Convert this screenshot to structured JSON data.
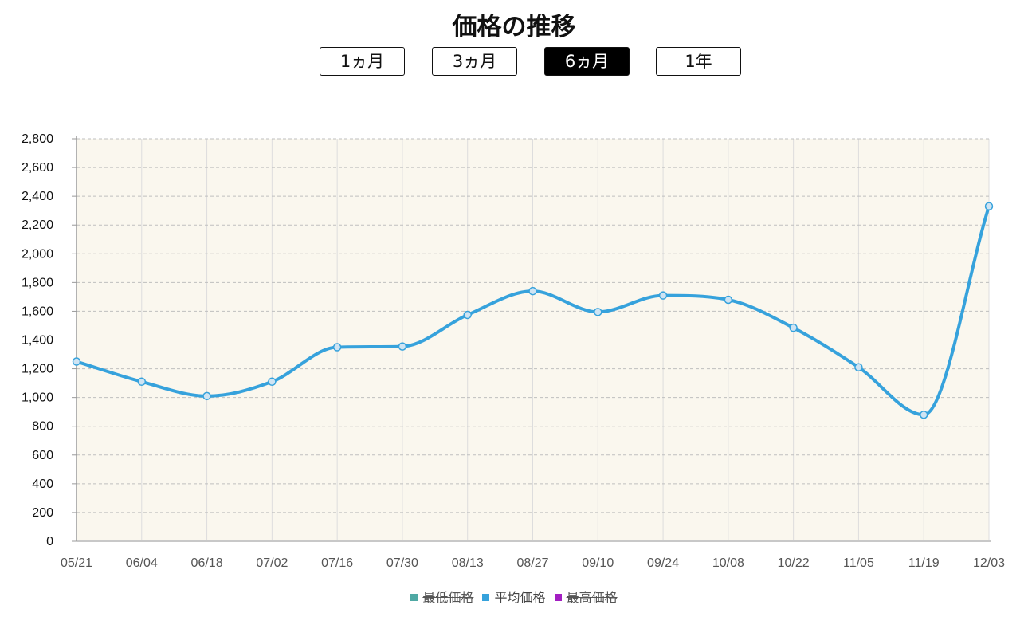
{
  "title": "価格の推移",
  "range_buttons": [
    {
      "label": "1ヵ月",
      "active": false
    },
    {
      "label": "3ヵ月",
      "active": false
    },
    {
      "label": "6ヵ月",
      "active": true
    },
    {
      "label": "1年",
      "active": false
    }
  ],
  "legend": [
    {
      "label": "最低価格",
      "color": "#4fa9a4",
      "hidden": true
    },
    {
      "label": "平均価格",
      "color": "#36a2dc",
      "hidden": false
    },
    {
      "label": "最高価格",
      "color": "#a31ec2",
      "hidden": true
    }
  ],
  "chart_data": {
    "type": "line",
    "title": "価格の推移",
    "categories": [
      "05/21",
      "06/04",
      "06/18",
      "07/02",
      "07/16",
      "07/30",
      "08/13",
      "08/27",
      "09/10",
      "09/24",
      "10/08",
      "10/22",
      "11/05",
      "11/19",
      "12/03"
    ],
    "series": [
      {
        "name": "平均価格",
        "color": "#36a2dc",
        "values": [
          1250,
          1110,
          1010,
          1110,
          1350,
          1355,
          1575,
          1740,
          1595,
          1710,
          1680,
          1485,
          1210,
          880,
          2330
        ]
      }
    ],
    "hidden_series": [
      "最低価格",
      "最高価格"
    ],
    "ylim": [
      0,
      2800
    ],
    "yticks": [
      0,
      200,
      400,
      600,
      800,
      1000,
      1200,
      1400,
      1600,
      1800,
      2000,
      2200,
      2400,
      2600,
      2800
    ],
    "ytick_labels": [
      "0",
      "200",
      "400",
      "600",
      "800",
      "1,000",
      "1,200",
      "1,400",
      "1,600",
      "1,800",
      "2,000",
      "2,200",
      "2,400",
      "2,600",
      "2,800"
    ],
    "plot_background": "#faf7ee",
    "grid": true,
    "legend_position": "bottom"
  }
}
